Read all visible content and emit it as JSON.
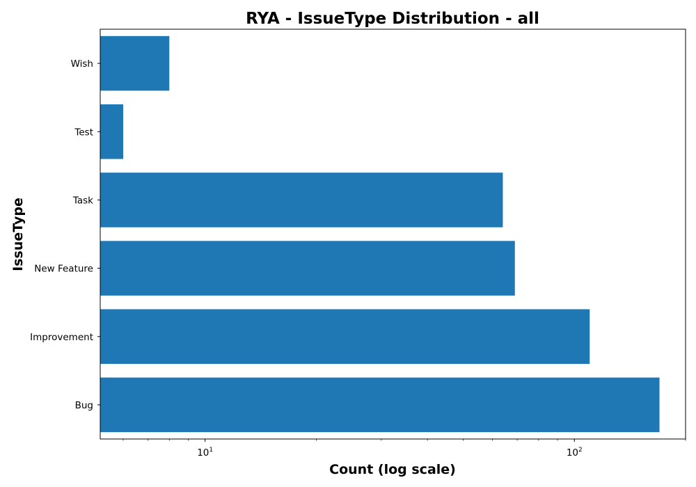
{
  "chart_data": {
    "type": "bar",
    "orientation": "horizontal",
    "title": "RYA - IssueType Distribution - all",
    "xlabel": "Count (log scale)",
    "ylabel": "IssueType",
    "x_scale": "log",
    "xlim": [
      5.2,
      200
    ],
    "categories": [
      "Bug",
      "Improvement",
      "New Feature",
      "Task",
      "Test",
      "Wish"
    ],
    "values": [
      170,
      110,
      69,
      64,
      6,
      8
    ],
    "x_major_ticks": [
      {
        "value": 10,
        "base": "10",
        "exp": "1"
      },
      {
        "value": 100,
        "base": "10",
        "exp": "2"
      }
    ],
    "colors": {
      "bar": "#1f77b4"
    },
    "grid": false,
    "legend": "none"
  }
}
